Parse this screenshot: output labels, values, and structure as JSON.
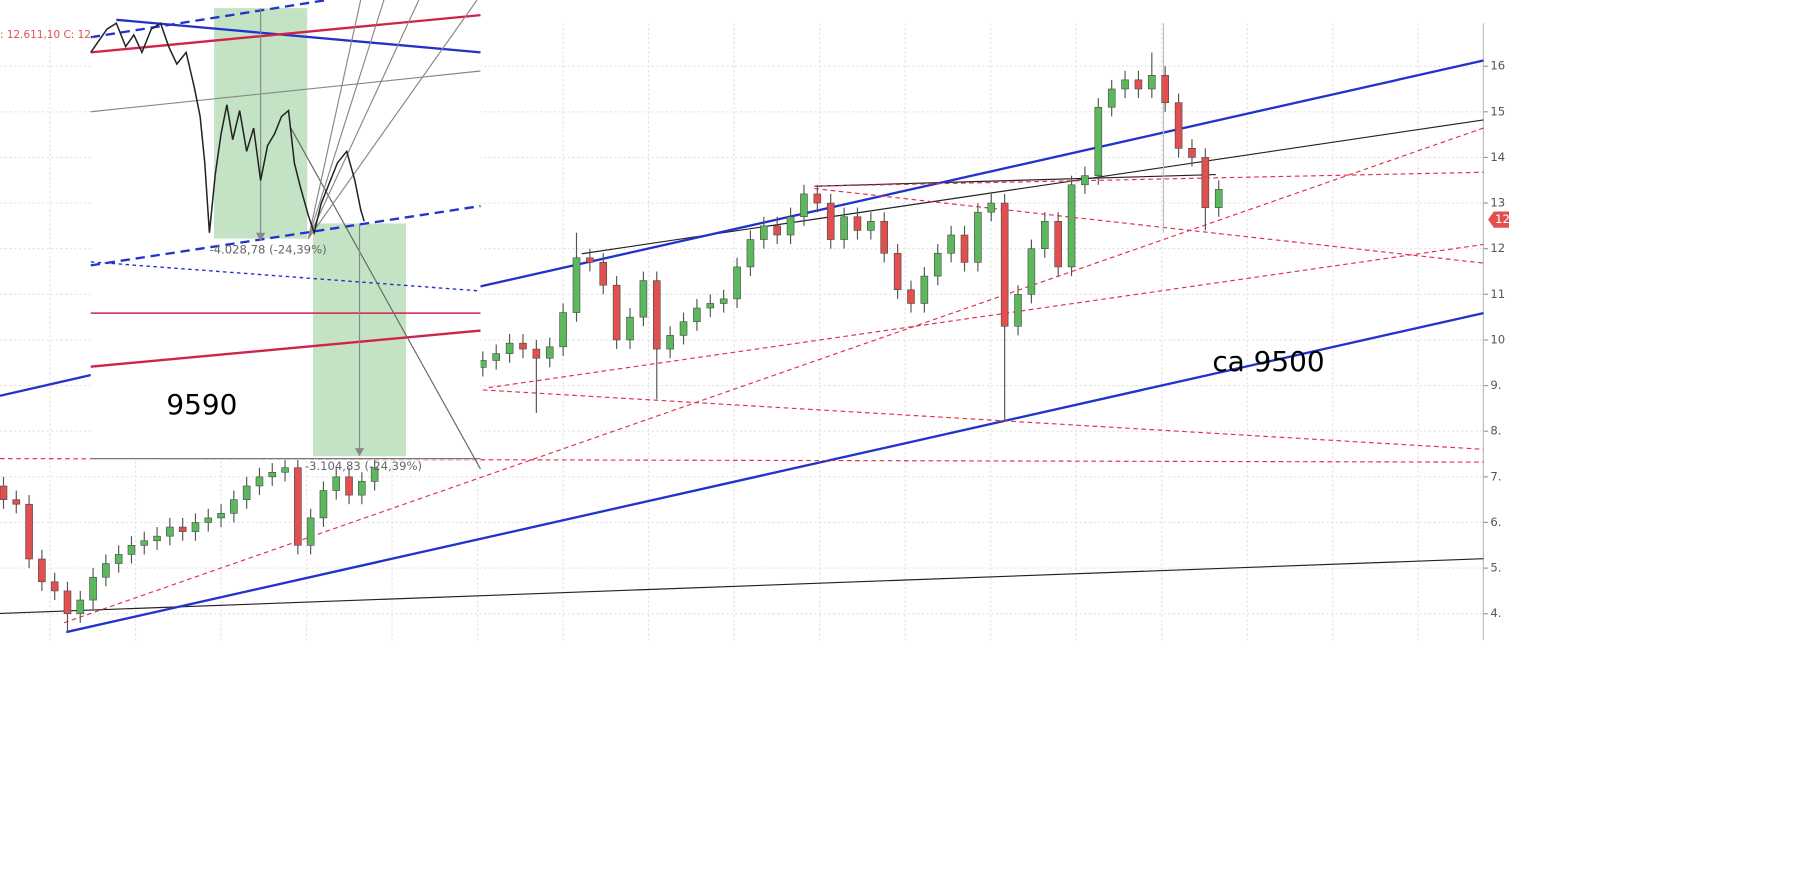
{
  "chart_data": {
    "type": "candlestick",
    "series": [
      {
        "open": [
          9400,
          9550,
          9700,
          9930,
          9800,
          9600,
          9850,
          10600,
          11800,
          11700,
          11200,
          10000,
          10500,
          11300,
          9800,
          10100,
          10400,
          10700,
          10800,
          10900,
          11600,
          12200,
          12500,
          12300,
          12700,
          13200,
          13000,
          12200,
          12700,
          12400,
          12600,
          11900,
          11100,
          10800,
          11400,
          11900,
          12300,
          11700,
          12800,
          13000,
          10300,
          11000,
          12000,
          12600,
          11600,
          13400,
          13600,
          15100,
          15500,
          15700,
          15500,
          15800,
          15200,
          14200,
          14000,
          12900
        ],
        "high": [
          9750,
          9900,
          10130,
          10130,
          10000,
          10050,
          10800,
          12350,
          12000,
          11900,
          11400,
          10700,
          11500,
          11500,
          10300,
          10600,
          10900,
          11000,
          11100,
          11800,
          12400,
          12700,
          12700,
          12900,
          13400,
          13400,
          13200,
          12900,
          12900,
          12800,
          12800,
          12100,
          11300,
          11600,
          12100,
          12500,
          12500,
          13000,
          13200,
          13200,
          11200,
          12200,
          12800,
          12800,
          13600,
          13800,
          15300,
          15700,
          15900,
          15900,
          16300,
          16000,
          15400,
          14400,
          14200,
          13500
        ],
        "low": [
          9200,
          9350,
          9500,
          9600,
          8400,
          9400,
          9650,
          10400,
          11500,
          11000,
          9800,
          9800,
          10300,
          8700,
          9600,
          9900,
          10200,
          10500,
          10600,
          10700,
          11400,
          12000,
          12100,
          12100,
          12500,
          12800,
          12000,
          12000,
          12200,
          12200,
          11700,
          10900,
          10600,
          10600,
          11200,
          11700,
          11500,
          11500,
          12600,
          8200,
          10100,
          10800,
          11800,
          11400,
          11400,
          13200,
          13400,
          14900,
          15300,
          15300,
          15300,
          15000,
          14000,
          13800,
          12400,
          12700
        ],
        "close": [
          9550,
          9700,
          9930,
          9800,
          9600,
          9850,
          10600,
          11800,
          11700,
          11200,
          10000,
          10500,
          11300,
          9800,
          10100,
          10400,
          10700,
          10800,
          10900,
          11600,
          12200,
          12500,
          12300,
          12700,
          13200,
          13000,
          12200,
          12700,
          12400,
          12600,
          11900,
          11100,
          10800,
          11400,
          11900,
          12300,
          11700,
          12800,
          13000,
          10300,
          11000,
          12000,
          12600,
          11600,
          13400,
          13600,
          15100,
          15500,
          15700,
          15500,
          15800,
          15200,
          14200,
          14000,
          12900,
          13300
        ]
      },
      {
        "open": [
          6800,
          6500,
          6400,
          5200,
          4700,
          4500,
          4000,
          4300,
          4800,
          5100,
          5300,
          5500,
          5600,
          5700,
          5900,
          5800,
          6000,
          6100,
          6200,
          6500,
          6800,
          7000,
          7100,
          7200,
          5500,
          6100,
          6700,
          7000,
          6600,
          6900
        ],
        "high": [
          7000,
          6700,
          6600,
          5400,
          4900,
          4700,
          4500,
          5000,
          5300,
          5500,
          5700,
          5800,
          5900,
          6100,
          6100,
          6200,
          6300,
          6400,
          6700,
          7000,
          7200,
          7300,
          7400,
          7400,
          6300,
          6900,
          7200,
          7200,
          7100,
          7400
        ],
        "low": [
          6300,
          6200,
          5000,
          4500,
          4300,
          3600,
          3800,
          4100,
          4600,
          4900,
          5100,
          5300,
          5400,
          5500,
          5600,
          5600,
          5800,
          5900,
          6000,
          6300,
          6600,
          6800,
          6900,
          5300,
          5300,
          5900,
          6500,
          6400,
          6400,
          6700
        ],
        "close": [
          6500,
          6400,
          5200,
          4700,
          4500,
          4000,
          4300,
          4800,
          5100,
          5300,
          5500,
          5600,
          5700,
          5900,
          5800,
          6000,
          6100,
          6200,
          6500,
          6800,
          7000,
          7100,
          7200,
          5500,
          6100,
          6700,
          7000,
          6600,
          6900,
          7200
        ]
      }
    ],
    "up_color": "#5cb85c",
    "down_color": "#e05050",
    "ylim": [
      3420,
      16940
    ],
    "yticks": [
      {
        "value": 16000,
        "label": "16"
      },
      {
        "value": 15000,
        "label": "15"
      },
      {
        "value": 14000,
        "label": "14"
      },
      {
        "value": 13000,
        "label": "13"
      },
      {
        "value": 12000,
        "label": "12"
      },
      {
        "value": 11000,
        "label": "11"
      },
      {
        "value": 10000,
        "label": "10"
      },
      {
        "value": 9000,
        "label": "9."
      },
      {
        "value": 8000,
        "label": "8."
      },
      {
        "value": 7000,
        "label": "7."
      },
      {
        "value": 6000,
        "label": "6."
      },
      {
        "value": 5000,
        "label": "5."
      },
      {
        "value": 4000,
        "label": "4."
      }
    ],
    "grid": true,
    "price_marker": "12",
    "header_text": ": 12.611,10  C: 12.",
    "annotations": [
      "-4.028,78 (-24,39%)",
      "-3.104,83 (-24,39%)",
      "9590",
      "ca 9500"
    ]
  }
}
